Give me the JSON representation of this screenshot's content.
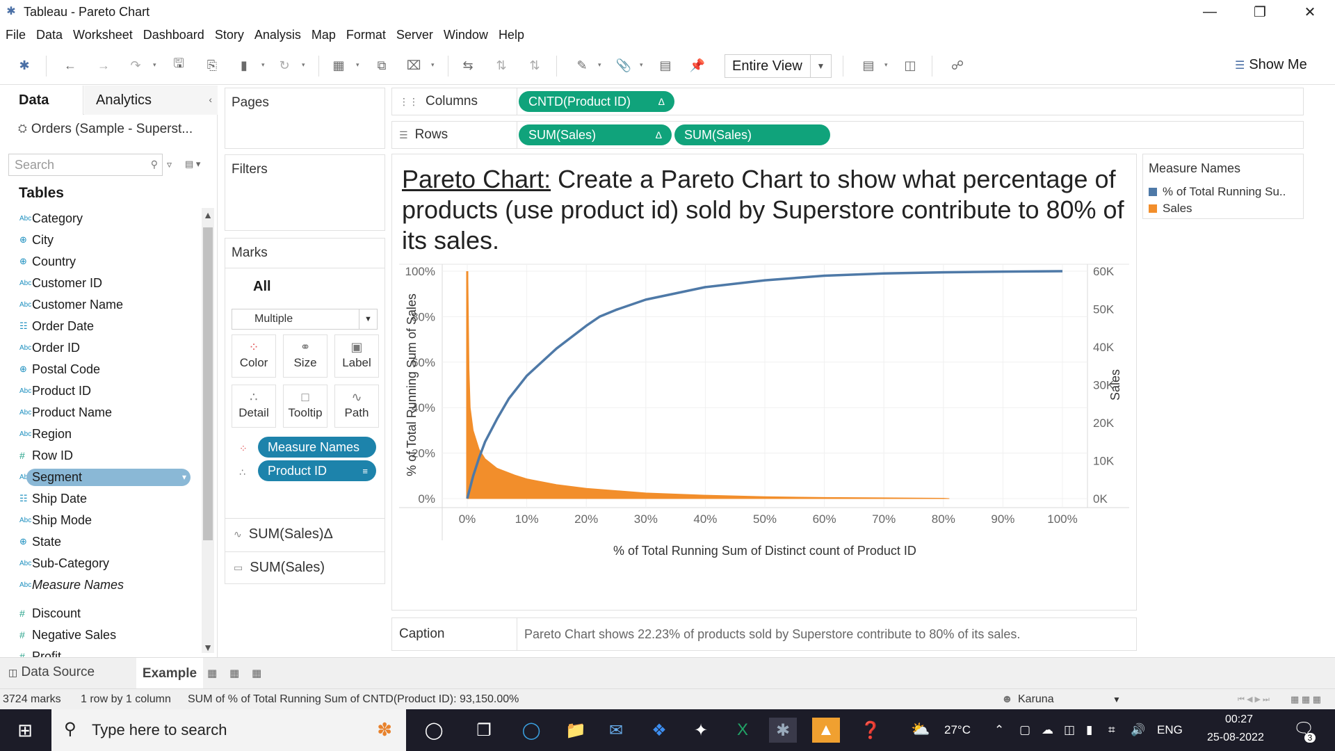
{
  "window": {
    "title": "Tableau - Pareto Chart"
  },
  "menu": [
    "File",
    "Data",
    "Worksheet",
    "Dashboard",
    "Story",
    "Analysis",
    "Map",
    "Format",
    "Server",
    "Window",
    "Help"
  ],
  "toolbar": {
    "fit": "Entire View",
    "show_me": "Show Me"
  },
  "data_pane": {
    "tab_data": "Data",
    "tab_analytics": "Analytics",
    "datasource": "Orders (Sample - Superst...",
    "search_placeholder": "Search",
    "tables_heading": "Tables",
    "fields": [
      {
        "name": "Category",
        "type": "Abc"
      },
      {
        "name": "City",
        "type": "geo"
      },
      {
        "name": "Country",
        "type": "geo"
      },
      {
        "name": "Customer ID",
        "type": "Abc"
      },
      {
        "name": "Customer Name",
        "type": "Abc"
      },
      {
        "name": "Order Date",
        "type": "date"
      },
      {
        "name": "Order ID",
        "type": "Abc"
      },
      {
        "name": "Postal Code",
        "type": "geo"
      },
      {
        "name": "Product ID",
        "type": "Abc"
      },
      {
        "name": "Product Name",
        "type": "Abc"
      },
      {
        "name": "Region",
        "type": "Abc"
      },
      {
        "name": "Row ID",
        "type": "num"
      },
      {
        "name": "Segment",
        "type": "Abc",
        "selected": true
      },
      {
        "name": "Ship Date",
        "type": "date"
      },
      {
        "name": "Ship Mode",
        "type": "Abc"
      },
      {
        "name": "State",
        "type": "geo"
      },
      {
        "name": "Sub-Category",
        "type": "Abc"
      },
      {
        "name": "Measure Names",
        "type": "Abc",
        "italic": true
      },
      {
        "name": "Discount",
        "type": "num"
      },
      {
        "name": "Negative Sales",
        "type": "num"
      },
      {
        "name": "Profit",
        "type": "num"
      }
    ]
  },
  "cards": {
    "pages": "Pages",
    "filters": "Filters",
    "marks": "Marks",
    "marks_all": "All",
    "mark_type": "Multiple",
    "mark_buttons": [
      "Color",
      "Size",
      "Label",
      "Detail",
      "Tooltip",
      "Path"
    ],
    "mark_pills": [
      "Measure Names",
      "Product ID"
    ],
    "layers": [
      "SUM(Sales)Δ",
      "SUM(Sales)"
    ]
  },
  "shelves": {
    "columns_label": "Columns",
    "rows_label": "Rows",
    "columns_pills": [
      "CNTD(Product ID)"
    ],
    "rows_pills": [
      "SUM(Sales)",
      "SUM(Sales)"
    ],
    "delta": "Δ"
  },
  "viz": {
    "title_lead": "Pareto Chart:",
    "title_rest": " Create a Pareto Chart to show what percentage of products (use product id) sold by Superstore contribute to 80% of its sales."
  },
  "legend": {
    "title": "Measure Names",
    "items": [
      {
        "label": "% of Total Running Su..",
        "color": "#4e79a7"
      },
      {
        "label": "Sales",
        "color": "#f28e2b"
      }
    ]
  },
  "caption": {
    "label": "Caption",
    "text": "Pareto Chart shows 22.23% of products sold by Superstore contribute to 80% of its sales."
  },
  "chart_data": {
    "type": "line",
    "xlabel": "% of Total Running Sum of Distinct count of Product ID",
    "ylabel": "% of Total Running Sum of Sales",
    "y2label": "Sales",
    "x_ticks": [
      "0%",
      "10%",
      "20%",
      "30%",
      "40%",
      "50%",
      "60%",
      "70%",
      "80%",
      "90%",
      "100%"
    ],
    "y_ticks": [
      "0%",
      "20%",
      "40%",
      "60%",
      "80%",
      "100%"
    ],
    "y2_ticks": [
      "0K",
      "10K",
      "20K",
      "30K",
      "40K",
      "50K",
      "60K"
    ],
    "xlim": [
      0,
      100
    ],
    "ylim": [
      0,
      100
    ],
    "y2lim": [
      0,
      60000
    ],
    "series": [
      {
        "name": "% of Total Running Su..",
        "color": "#4e79a7",
        "axis": "left",
        "x": [
          0,
          1,
          2,
          3,
          5,
          7,
          10,
          15,
          20,
          22.23,
          25,
          30,
          40,
          50,
          60,
          70,
          80,
          90,
          100
        ],
        "y": [
          0,
          10,
          18,
          25,
          35,
          44,
          54,
          66,
          76,
          80,
          83,
          87.5,
          93,
          96,
          98,
          99,
          99.5,
          99.8,
          100
        ]
      },
      {
        "name": "Sales",
        "color": "#f28e2b",
        "axis": "right",
        "type": "area",
        "x": [
          0,
          0.1,
          0.3,
          0.5,
          1,
          2,
          3,
          5,
          8,
          10,
          15,
          20,
          30,
          40,
          50,
          60,
          80,
          81
        ],
        "y": [
          0,
          60000,
          34000,
          24000,
          18000,
          13000,
          10500,
          8000,
          6200,
          5200,
          3700,
          2700,
          1500,
          900,
          500,
          300,
          100,
          0
        ]
      }
    ],
    "grid": true
  },
  "bottom_tabs": {
    "datasource": "Data Source",
    "sheet": "Example"
  },
  "status": {
    "marks": "3724 marks",
    "rows": "1 row by 1 column",
    "sum": "SUM of % of Total Running Sum of CNTD(Product ID): 93,150.00%",
    "user": "Karuna"
  },
  "taskbar": {
    "search_placeholder": "Type here to search",
    "temperature": "27°C",
    "lang": "ENG",
    "time": "00:27",
    "date": "25-08-2022",
    "notif_count": "3"
  }
}
